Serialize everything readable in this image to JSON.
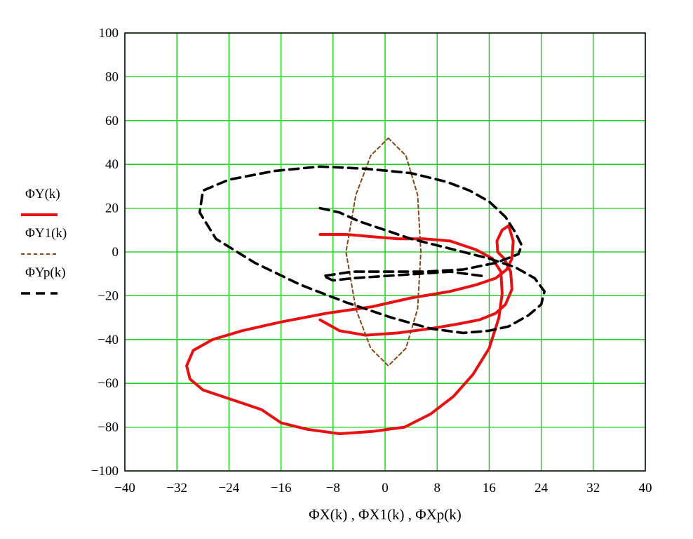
{
  "chart_data": {
    "type": "line",
    "title": "",
    "xlabel": "ΦX(k) , ΦX1(k) , ΦXp(k)",
    "ylabel": "",
    "xlim": [
      -40,
      40
    ],
    "ylim": [
      -100,
      100
    ],
    "x_ticks": [
      -40,
      -32,
      -24,
      -16,
      -8,
      0,
      8,
      16,
      24,
      32,
      40
    ],
    "y_ticks": [
      100,
      80,
      60,
      40,
      20,
      0,
      -20,
      -40,
      -60,
      -80,
      -100
    ],
    "x_tick_labels": [
      "−40",
      "−32",
      "−24",
      "−16",
      "−8",
      "0",
      "8",
      "16",
      "24",
      "32",
      "40"
    ],
    "y_tick_labels": [
      "100",
      "80",
      "60",
      "40",
      "20",
      "0",
      "−20",
      "−40",
      "−60",
      "−80",
      "−100"
    ],
    "grid": true,
    "grid_color": "#00cc00",
    "legend_position": "left",
    "series": [
      {
        "name": "ΦY(k)",
        "color": "#e81010",
        "style": "solid",
        "x": [
          -10.0,
          -7.0,
          -3.0,
          2.0,
          7.0,
          11.0,
          14.5,
          17.0,
          18.5,
          19.5,
          19.3,
          18.3,
          17.3,
          17.2,
          18.0,
          19.0,
          19.7,
          19.5,
          18.7,
          17.0,
          14.0,
          10.0,
          4.0,
          -2.0,
          -9.0,
          -16.0,
          -22.0,
          -26.5,
          -29.5,
          -30.5,
          -30.0,
          -28.0,
          -24.0,
          -19.0,
          -16.0,
          -12.0,
          -7.0,
          -2.0,
          3.0,
          7.0,
          10.5,
          13.5,
          16.0,
          17.5,
          18.0,
          17.8,
          16.5,
          14.0,
          10.0,
          6.0,
          2.0,
          -2.0,
          -6.0,
          -8.5,
          -10.0
        ],
        "y": [
          -31,
          -36,
          -38,
          -37,
          -35,
          -33,
          -31,
          -28,
          -24,
          -17,
          -9,
          -3,
          0,
          5,
          10,
          12,
          5,
          -3,
          -8,
          -12,
          -15,
          -18,
          -21,
          -25,
          -28,
          -32,
          -36,
          -40,
          -45,
          -52,
          -58,
          -63,
          -67,
          -72,
          -78,
          -81,
          -83,
          -82,
          -80,
          -74,
          -66,
          -56,
          -44,
          -30,
          -19,
          -9,
          -3,
          1,
          5,
          6,
          6,
          7,
          8,
          8,
          8
        ]
      },
      {
        "name": "ΦY1(k)",
        "color": "#8b4513",
        "style": "dashed",
        "x": [
          0.5,
          3.2,
          5.0,
          5.5,
          5.0,
          3.2,
          0.5,
          -2.2,
          -4.5,
          -6.0,
          -4.5,
          -2.2,
          0.5
        ],
        "y": [
          52,
          44,
          26,
          0,
          -26,
          -44,
          -52,
          -44,
          -26,
          0,
          26,
          44,
          52
        ]
      },
      {
        "name": "ΦYp(k)",
        "color": "#000000",
        "style": "dashed",
        "x": [
          -10.0,
          -7.0,
          -4.0,
          0.0,
          4.0,
          8.0,
          12.0,
          16.0,
          20.0,
          23.0,
          24.5,
          24.0,
          22.0,
          19.0,
          16.0,
          12.0,
          7.0,
          1.0,
          -6.0,
          -13.0,
          -20.0,
          -26.0,
          -28.5,
          -28.0,
          -24.0,
          -17.0,
          -10.0,
          -3.0,
          4.0,
          9.5,
          13.0,
          16.0,
          18.5,
          20.0,
          21.0,
          20.5,
          17.0,
          12.0,
          6.0,
          0.0,
          -5.0,
          -9.5,
          -8.0,
          -5.0,
          0.0,
          5.0,
          10.0,
          15.0
        ],
        "y": [
          20,
          18,
          14,
          10,
          6,
          3,
          0,
          -3,
          -7,
          -12,
          -18,
          -24,
          -29,
          -34,
          -36,
          -37,
          -35,
          -30,
          -23,
          -15,
          -5,
          6,
          18,
          28,
          33,
          37,
          39,
          38,
          36,
          32,
          28,
          23,
          16,
          9,
          3,
          -1,
          -5,
          -8,
          -9,
          -9,
          -9,
          -11,
          -13,
          -12,
          -11,
          -10,
          -9,
          -11
        ]
      }
    ]
  },
  "legend": {
    "items": [
      {
        "label": "ΦY(k)",
        "color": "#e81010",
        "style": "solid"
      },
      {
        "label": "ΦY1(k)",
        "color": "#8b4513",
        "style": "dashed"
      },
      {
        "label": "ΦYp(k)",
        "color": "#000000",
        "style": "dashed"
      }
    ]
  }
}
